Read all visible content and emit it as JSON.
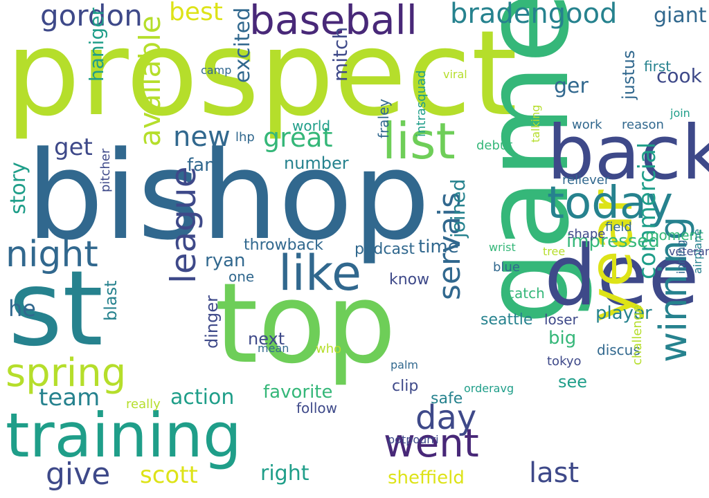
{
  "palette": {
    "lime": "#b5de2b",
    "green": "#6ece58",
    "teal_green": "#35b779",
    "teal": "#1f9e89",
    "blue_teal": "#26828e",
    "blue": "#31688e",
    "indigo": "#3e4989",
    "purple": "#482878",
    "yellow": "#dde318"
  },
  "words": [
    "prospect",
    "bishop",
    "top",
    "game",
    "st",
    "dee",
    "back",
    "year",
    "training",
    "like",
    "baseball",
    "today",
    "list",
    "spring",
    "winning",
    "went",
    "night",
    "league",
    "bradengood",
    "gordon",
    "servais",
    "best",
    "give",
    "day",
    "available",
    "team",
    "last",
    "scott",
    "get",
    "great",
    "commercial",
    "new",
    "sheffield",
    "impressed",
    "he",
    "story",
    "excited",
    "mitch",
    "right",
    "joined",
    "ger",
    "cook",
    "haniger",
    "action",
    "giant",
    "favorite",
    "fan",
    "time",
    "justus",
    "player",
    "ryan",
    "dinger",
    "number",
    "big",
    "next",
    "podcast",
    "throwback",
    "see",
    "clip",
    "seattle",
    "catch",
    "know",
    "loser",
    "moment",
    "world",
    "work",
    "safe",
    "tokyo",
    "blast",
    "follow",
    "first",
    "reason",
    "field",
    "shape",
    "discus",
    "airplane",
    "potpourri",
    "orderavg",
    "palm",
    "really",
    "reliever",
    "one",
    "debut",
    "wrist",
    "tree",
    "fraley",
    "join",
    "who",
    "pitcher",
    "blue",
    "challenge",
    "mean",
    "join",
    "lhp",
    "camp",
    "intrasquad",
    "viral",
    "talking",
    "veteran",
    "inning"
  ]
}
